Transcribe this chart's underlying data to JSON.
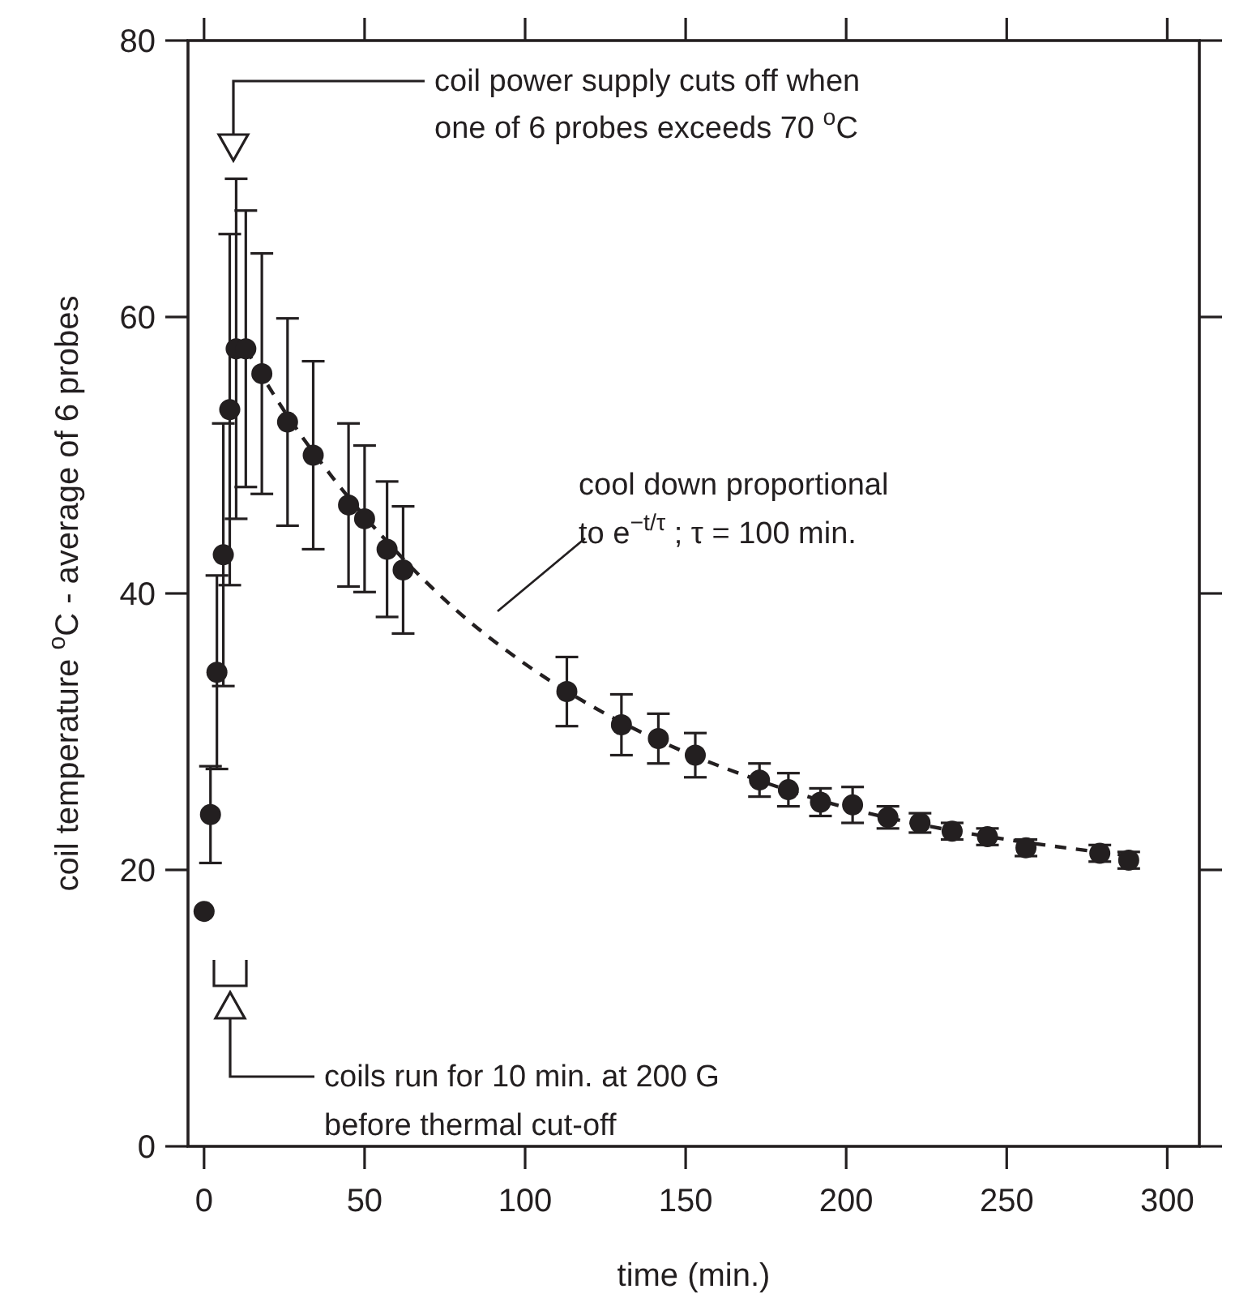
{
  "chart_data": {
    "type": "scatter",
    "xlabel": "time (min.)",
    "ylabel": "coil temperature $^{o}$C - average of 6 probes",
    "xlim": [
      -5,
      310
    ],
    "ylim": [
      0,
      80
    ],
    "xticks": [
      0,
      50,
      100,
      150,
      200,
      250,
      300
    ],
    "yticks": [
      0,
      20,
      40,
      60,
      80
    ],
    "grid": false,
    "series": [
      {
        "color": "#231f20",
        "marker": "circle",
        "x": [
          0,
          2,
          4,
          6,
          8,
          10,
          13,
          18,
          26,
          34,
          45,
          50,
          57,
          62,
          113,
          130,
          141.5,
          153,
          173,
          182,
          192,
          202,
          213,
          223,
          233,
          244,
          256,
          279,
          288
        ],
        "values": [
          17,
          24,
          34.3,
          42.8,
          53.3,
          57.7,
          57.7,
          55.9,
          52.4,
          50,
          46.4,
          45.4,
          43.2,
          41.7,
          32.9,
          30.5,
          29.5,
          28.3,
          26.5,
          25.8,
          24.9,
          24.7,
          23.8,
          23.4,
          22.8,
          22.4,
          21.6,
          21.2,
          20.7
        ],
        "errors": [
          null,
          3.5,
          7,
          9.5,
          12.7,
          12.3,
          10,
          8.7,
          7.5,
          6.8,
          5.9,
          5.3,
          4.9,
          4.6,
          2.5,
          2.2,
          1.8,
          1.6,
          1.2,
          1.2,
          1,
          1.3,
          0.8,
          0.7,
          0.6,
          0.6,
          0.6,
          0.6,
          0.6
        ]
      },
      {
        "type": "line",
        "color": "#231f20",
        "marker": "none",
        "line_style": "dashed",
        "x": [
          13,
          25,
          40,
          60,
          80,
          100,
          125,
          150,
          175,
          200,
          225,
          250,
          275,
          289
        ],
        "values": [
          57.7,
          53.2,
          48.4,
          43,
          38.5,
          34.9,
          31.3,
          28.5,
          26.3,
          24.5,
          23.2,
          22.2,
          21.4,
          21
        ]
      }
    ],
    "annotations": [
      "coil power supply cuts off when\none of 6 probes exceeds 70 $^{o}$C",
      "cool down proportional\nto e$^{−t/τ}$ ; τ = 100 min.",
      "coils run for 10 min. at 200 G\nbefore thermal cut-off"
    ]
  }
}
